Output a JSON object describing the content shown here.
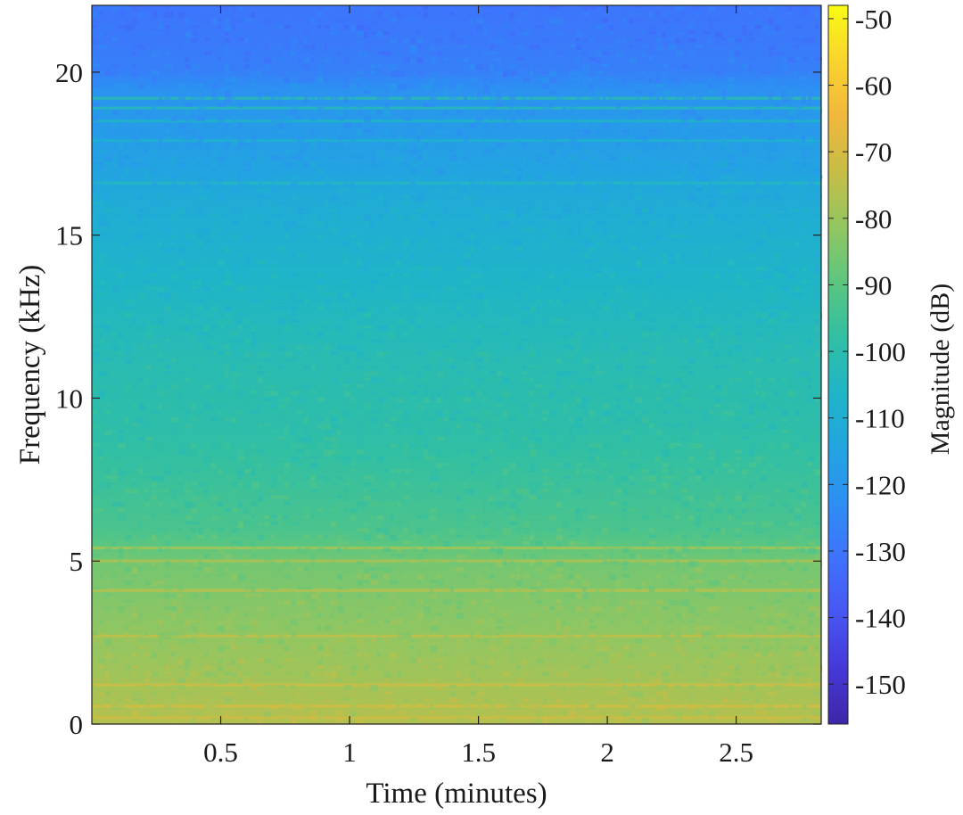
{
  "chart_data": {
    "type": "heatmap",
    "title": "",
    "xlabel": "Time (minutes)",
    "ylabel": "Frequency (kHz)",
    "colorbar_label": "Magnitude (dB)",
    "xlim": [
      0.0,
      2.83
    ],
    "ylim": [
      0,
      22.05
    ],
    "clim": [
      -156,
      -48
    ],
    "x_ticks": [
      0.5,
      1,
      1.5,
      2,
      2.5
    ],
    "x_tick_labels": [
      "0.5",
      "1",
      "1.5",
      "2",
      "2.5"
    ],
    "y_ticks": [
      0,
      5,
      10,
      15,
      20
    ],
    "y_tick_labels": [
      "0",
      "5",
      "10",
      "15",
      "20"
    ],
    "colorbar_ticks": [
      -50,
      -60,
      -70,
      -80,
      -90,
      -100,
      -110,
      -120,
      -130,
      -140,
      -150
    ],
    "colorbar_tick_labels": [
      "-50",
      "-60",
      "-70",
      "-80",
      "-90",
      "-100",
      "-110",
      "-120",
      "-130",
      "-140",
      "-150"
    ],
    "colormap": "parula",
    "colormap_stops": [
      "#3e26a8",
      "#4538d7",
      "#4756f3",
      "#3f72fd",
      "#2d8ff3",
      "#22a5e0",
      "#1fb5c7",
      "#31bfa4",
      "#5cc67f",
      "#93c661",
      "#c7bd45",
      "#f1b83d",
      "#f9d42d",
      "#f9fb15"
    ],
    "magnitude_profile": {
      "frequency_khz": [
        0,
        0.5,
        1,
        2,
        3,
        4,
        5,
        5.5,
        6,
        7,
        8,
        9,
        10,
        11,
        12,
        13,
        14,
        15,
        16,
        17,
        18,
        19,
        19.5,
        20,
        21,
        22.05
      ],
      "magnitude_db": [
        -76,
        -77,
        -78,
        -80,
        -82,
        -84,
        -86,
        -90,
        -93,
        -95,
        -97,
        -99,
        -100,
        -101,
        -103,
        -105,
        -107,
        -109,
        -111,
        -115,
        -118,
        -120,
        -122,
        -127,
        -129,
        -130
      ]
    },
    "tonal_lines": [
      {
        "frequency_khz": 0.2,
        "magnitude_db": -72
      },
      {
        "frequency_khz": 0.55,
        "magnitude_db": -71
      },
      {
        "frequency_khz": 1.2,
        "magnitude_db": -72
      },
      {
        "frequency_khz": 2.7,
        "magnitude_db": -74
      },
      {
        "frequency_khz": 4.1,
        "magnitude_db": -75
      },
      {
        "frequency_khz": 5.0,
        "magnitude_db": -77
      },
      {
        "frequency_khz": 5.4,
        "magnitude_db": -78
      },
      {
        "frequency_khz": 16.6,
        "magnitude_db": -104
      },
      {
        "frequency_khz": 17.9,
        "magnitude_db": -108
      },
      {
        "frequency_khz": 18.5,
        "magnitude_db": -106
      },
      {
        "frequency_khz": 18.9,
        "magnitude_db": -103
      },
      {
        "frequency_khz": 19.2,
        "magnitude_db": -101
      }
    ]
  }
}
